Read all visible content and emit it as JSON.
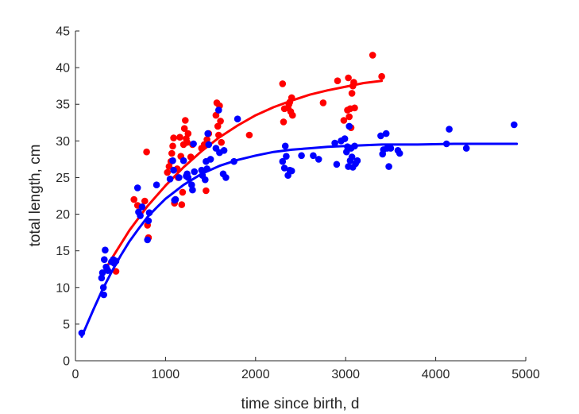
{
  "chart_data": {
    "type": "scatter",
    "title": "",
    "xlabel": "time since birth, d",
    "ylabel": "total length, cm",
    "xlim": [
      0,
      5000
    ],
    "ylim": [
      0,
      45
    ],
    "xticks": [
      0,
      1000,
      2000,
      3000,
      4000,
      5000
    ],
    "yticks": [
      0,
      5,
      10,
      15,
      20,
      25,
      30,
      35,
      40,
      45
    ],
    "grid": false,
    "legend": "none",
    "series": [
      {
        "color": "#ff0000",
        "points": [
          [
            650,
            22.0
          ],
          [
            690,
            21.2
          ],
          [
            770,
            21.8
          ],
          [
            790,
            28.5
          ],
          [
            800,
            18.5
          ],
          [
            810,
            16.8
          ],
          [
            450,
            12.2
          ],
          [
            1020,
            25.7
          ],
          [
            1040,
            26.5
          ],
          [
            1060,
            27.2
          ],
          [
            1070,
            28.3
          ],
          [
            1080,
            29.3
          ],
          [
            1090,
            30.4
          ],
          [
            1100,
            21.5
          ],
          [
            1110,
            22.0
          ],
          [
            1130,
            26.2
          ],
          [
            1140,
            25.0
          ],
          [
            1160,
            30.5
          ],
          [
            1170,
            27.9
          ],
          [
            1180,
            21.3
          ],
          [
            1190,
            23.0
          ],
          [
            1200,
            29.5
          ],
          [
            1210,
            31.7
          ],
          [
            1220,
            32.8
          ],
          [
            1230,
            30.3
          ],
          [
            1240,
            29.8
          ],
          [
            1250,
            31.0
          ],
          [
            1280,
            27.8
          ],
          [
            1300,
            29.5
          ],
          [
            1400,
            29.0
          ],
          [
            1430,
            29.5
          ],
          [
            1450,
            23.2
          ],
          [
            1460,
            30.2
          ],
          [
            1480,
            31.0
          ],
          [
            1560,
            33.5
          ],
          [
            1570,
            35.2
          ],
          [
            1580,
            32.0
          ],
          [
            1590,
            30.8
          ],
          [
            1600,
            34.8
          ],
          [
            1610,
            32.7
          ],
          [
            1620,
            29.8
          ],
          [
            1930,
            30.8
          ],
          [
            2300,
            37.8
          ],
          [
            2310,
            32.6
          ],
          [
            2320,
            34.4
          ],
          [
            2360,
            34.5
          ],
          [
            2370,
            35.0
          ],
          [
            2380,
            35.3
          ],
          [
            2390,
            34.0
          ],
          [
            2400,
            35.9
          ],
          [
            2410,
            33.5
          ],
          [
            2750,
            35.2
          ],
          [
            2910,
            38.2
          ],
          [
            2980,
            32.8
          ],
          [
            3020,
            34.2
          ],
          [
            3030,
            38.6
          ],
          [
            3040,
            33.3
          ],
          [
            3050,
            34.4
          ],
          [
            3060,
            31.8
          ],
          [
            3070,
            36.5
          ],
          [
            3080,
            37.5
          ],
          [
            3090,
            38.0
          ],
          [
            3100,
            34.5
          ],
          [
            3300,
            41.7
          ],
          [
            3400,
            38.8
          ]
        ],
        "curve": [
          [
            330,
            12.4
          ],
          [
            400,
            13.9
          ],
          [
            600,
            17.8
          ],
          [
            800,
            21.1
          ],
          [
            1000,
            23.9
          ],
          [
            1200,
            26.4
          ],
          [
            1400,
            28.6
          ],
          [
            1600,
            30.5
          ],
          [
            1800,
            32.1
          ],
          [
            2000,
            33.5
          ],
          [
            2200,
            34.6
          ],
          [
            2400,
            35.5
          ],
          [
            2600,
            36.3
          ],
          [
            2800,
            36.9
          ],
          [
            3000,
            37.4
          ],
          [
            3200,
            37.9
          ],
          [
            3400,
            38.2
          ]
        ]
      },
      {
        "color": "#0000ff",
        "points": [
          [
            70,
            3.8
          ],
          [
            290,
            11.3
          ],
          [
            300,
            12.0
          ],
          [
            310,
            10.0
          ],
          [
            315,
            9.0
          ],
          [
            320,
            13.8
          ],
          [
            330,
            15.1
          ],
          [
            340,
            12.8
          ],
          [
            350,
            12.5
          ],
          [
            360,
            12.3
          ],
          [
            400,
            13.5
          ],
          [
            420,
            13.8
          ],
          [
            430,
            13.3
          ],
          [
            450,
            13.6
          ],
          [
            690,
            23.6
          ],
          [
            700,
            20.3
          ],
          [
            720,
            19.8
          ],
          [
            740,
            21.0
          ],
          [
            800,
            16.5
          ],
          [
            810,
            19.1
          ],
          [
            820,
            20.2
          ],
          [
            900,
            24.0
          ],
          [
            1050,
            24.8
          ],
          [
            1080,
            27.3
          ],
          [
            1090,
            26.0
          ],
          [
            1100,
            21.9
          ],
          [
            1110,
            22.0
          ],
          [
            1150,
            25.0
          ],
          [
            1200,
            27.3
          ],
          [
            1230,
            25.2
          ],
          [
            1240,
            25.5
          ],
          [
            1250,
            25.0
          ],
          [
            1290,
            24.0
          ],
          [
            1300,
            23.3
          ],
          [
            1310,
            29.6
          ],
          [
            1320,
            25.8
          ],
          [
            1400,
            26.0
          ],
          [
            1410,
            25.3
          ],
          [
            1440,
            24.7
          ],
          [
            1450,
            27.2
          ],
          [
            1460,
            26.2
          ],
          [
            1470,
            31.0
          ],
          [
            1480,
            29.5
          ],
          [
            1500,
            27.5
          ],
          [
            1560,
            29.0
          ],
          [
            1590,
            34.2
          ],
          [
            1600,
            28.4
          ],
          [
            1640,
            25.5
          ],
          [
            1650,
            28.7
          ],
          [
            1670,
            25.0
          ],
          [
            1760,
            27.2
          ],
          [
            1800,
            33.0
          ],
          [
            2300,
            27.2
          ],
          [
            2320,
            26.3
          ],
          [
            2330,
            29.3
          ],
          [
            2340,
            27.9
          ],
          [
            2360,
            25.3
          ],
          [
            2380,
            26.0
          ],
          [
            2400,
            25.9
          ],
          [
            2510,
            28.0
          ],
          [
            2640,
            28.0
          ],
          [
            2700,
            27.5
          ],
          [
            2880,
            29.7
          ],
          [
            2900,
            26.8
          ],
          [
            2950,
            30.0
          ],
          [
            2990,
            30.3
          ],
          [
            3010,
            28.5
          ],
          [
            3020,
            29.2
          ],
          [
            3030,
            26.5
          ],
          [
            3040,
            32.0
          ],
          [
            3050,
            27.3
          ],
          [
            3060,
            29.0
          ],
          [
            3070,
            27.8
          ],
          [
            3080,
            26.4
          ],
          [
            3100,
            29.3
          ],
          [
            3110,
            26.9
          ],
          [
            3130,
            27.3
          ],
          [
            3390,
            30.7
          ],
          [
            3410,
            28.2
          ],
          [
            3420,
            28.8
          ],
          [
            3450,
            31.0
          ],
          [
            3460,
            29.0
          ],
          [
            3480,
            26.5
          ],
          [
            3500,
            29.0
          ],
          [
            3580,
            28.7
          ],
          [
            3600,
            28.3
          ],
          [
            4120,
            29.6
          ],
          [
            4150,
            31.6
          ],
          [
            4340,
            29.0
          ],
          [
            4870,
            32.2
          ]
        ],
        "curve": [
          [
            70,
            3.3
          ],
          [
            200,
            7.0
          ],
          [
            300,
            9.7
          ],
          [
            400,
            12.1
          ],
          [
            500,
            14.3
          ],
          [
            600,
            16.3
          ],
          [
            700,
            18.0
          ],
          [
            800,
            19.6
          ],
          [
            900,
            20.9
          ],
          [
            1000,
            22.1
          ],
          [
            1200,
            24.0
          ],
          [
            1400,
            25.5
          ],
          [
            1600,
            26.6
          ],
          [
            1800,
            27.4
          ],
          [
            2000,
            28.0
          ],
          [
            2200,
            28.5
          ],
          [
            2400,
            28.8
          ],
          [
            2600,
            29.0
          ],
          [
            2800,
            29.2
          ],
          [
            3000,
            29.3
          ],
          [
            3400,
            29.5
          ],
          [
            3800,
            29.5
          ],
          [
            4200,
            29.6
          ],
          [
            4600,
            29.6
          ],
          [
            4900,
            29.6
          ]
        ]
      }
    ]
  }
}
